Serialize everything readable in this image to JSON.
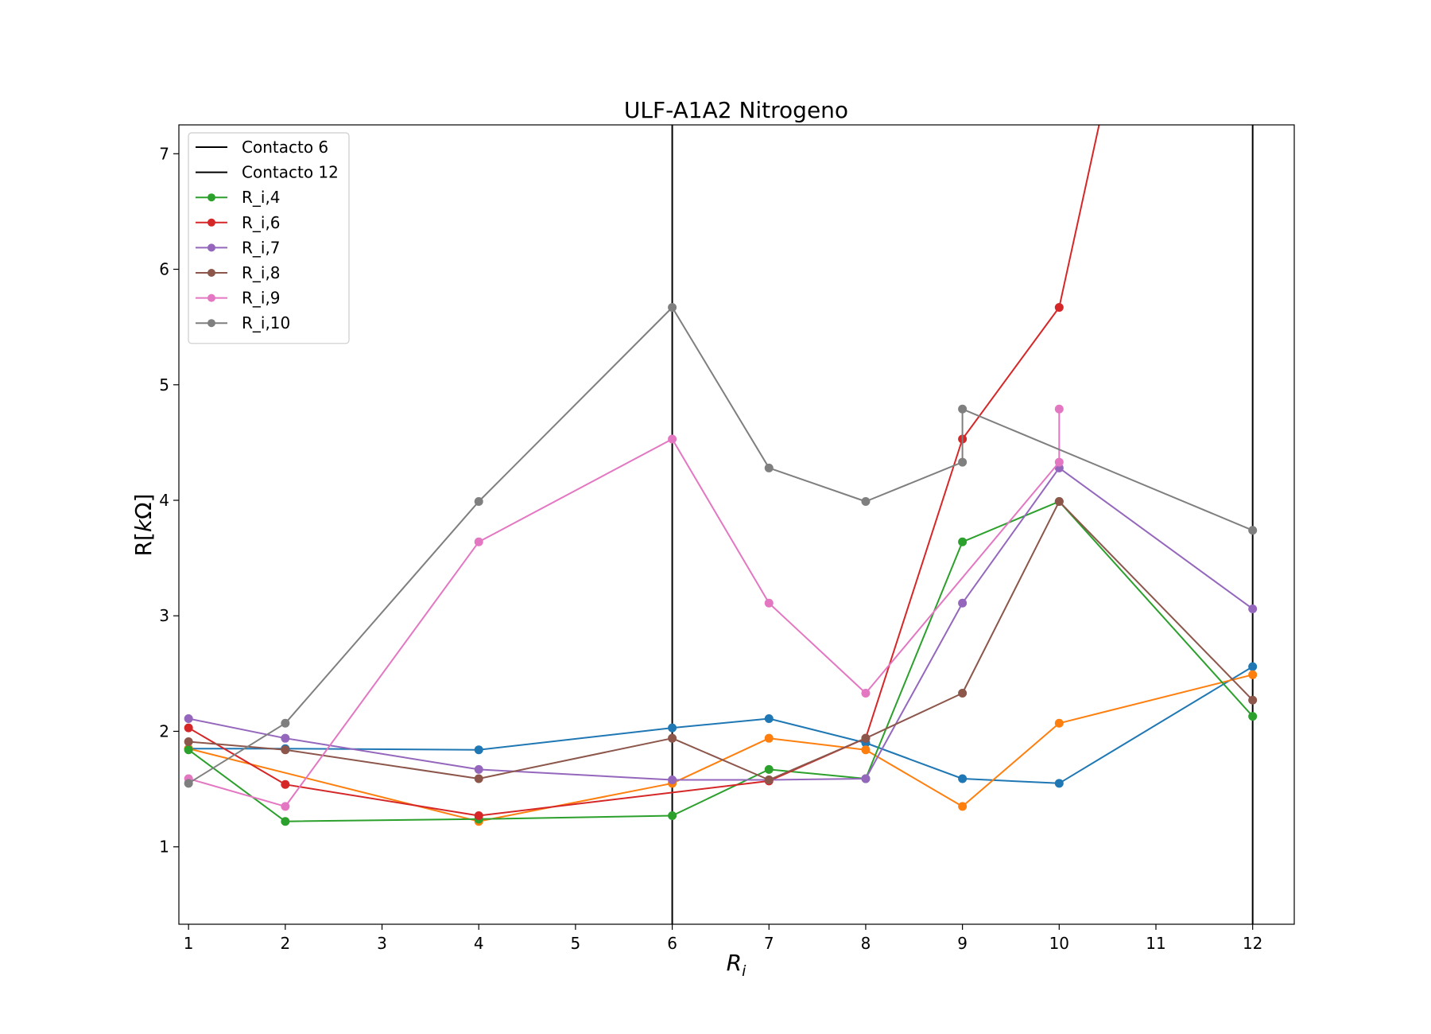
{
  "chart_data": {
    "type": "line",
    "title": "ULF-A1A2 Nitrogeno",
    "xlabel": "R_i",
    "ylabel": "R[kΩ]",
    "x_ticks": [
      "1",
      "2",
      "3",
      "4",
      "5",
      "6",
      "7",
      "8",
      "9",
      "10",
      "11",
      "12"
    ],
    "y_ticks": [
      "1",
      "2",
      "3",
      "4",
      "5",
      "6",
      "7"
    ],
    "xlim": [
      0.9,
      12.43
    ],
    "ylim": [
      0.33,
      7.25
    ],
    "grid": false,
    "legend_position": "top-left",
    "vlines": [
      {
        "name": "Contacto 6",
        "x": 6,
        "color": "#000000"
      },
      {
        "name": "Contacto 12",
        "x": 12,
        "color": "#000000"
      }
    ],
    "series": [
      {
        "name": "",
        "color": "#1f77b4",
        "x": [
          1,
          2,
          4,
          6,
          7,
          8,
          9,
          10,
          12
        ],
        "y": [
          1.85,
          1.85,
          1.84,
          2.03,
          2.11,
          1.9,
          1.59,
          1.55,
          2.56
        ]
      },
      {
        "name": "",
        "color": "#ff7f0e",
        "x": [
          1,
          4,
          6,
          7,
          8,
          9,
          10,
          12
        ],
        "y": [
          1.85,
          1.22,
          1.55,
          1.94,
          1.84,
          1.35,
          2.07,
          2.49
        ]
      },
      {
        "name": "R_i,4",
        "color": "#2ca02c",
        "x": [
          1,
          2,
          4,
          6,
          7,
          8,
          9,
          10,
          12
        ],
        "y": [
          1.84,
          1.22,
          1.24,
          1.27,
          1.67,
          1.59,
          3.64,
          3.99,
          2.13
        ]
      },
      {
        "name": "R_i,6",
        "color": "#d62728",
        "x": [
          1,
          2,
          4,
          7,
          8,
          9,
          10,
          11
        ],
        "y": [
          2.03,
          1.54,
          1.27,
          1.57,
          1.94,
          4.53,
          5.67,
          9.5
        ]
      },
      {
        "name": "R_i,7",
        "color": "#9467bd",
        "x": [
          1,
          2,
          4,
          6,
          7,
          8,
          9,
          10,
          12
        ],
        "y": [
          2.11,
          1.94,
          1.67,
          1.58,
          1.58,
          1.59,
          3.11,
          4.28,
          3.06
        ]
      },
      {
        "name": "R_i,8",
        "color": "#8c564b",
        "x": [
          1,
          2,
          4,
          6,
          7,
          8,
          9,
          10,
          12
        ],
        "y": [
          1.91,
          1.84,
          1.59,
          1.94,
          1.58,
          1.94,
          2.33,
          3.99,
          2.27
        ]
      },
      {
        "name": "R_i,9",
        "color": "#e377c2",
        "x": [
          1,
          2,
          4,
          6,
          7,
          8,
          10,
          10
        ],
        "y": [
          1.59,
          1.35,
          3.64,
          4.53,
          3.11,
          2.33,
          4.33,
          4.79
        ]
      },
      {
        "name": "R_i,10",
        "color": "#7f7f7f",
        "x": [
          1,
          2,
          4,
          6,
          7,
          8,
          9,
          9,
          12
        ],
        "y": [
          1.55,
          2.07,
          3.99,
          5.67,
          4.28,
          3.99,
          4.33,
          4.79,
          3.74
        ]
      }
    ]
  }
}
